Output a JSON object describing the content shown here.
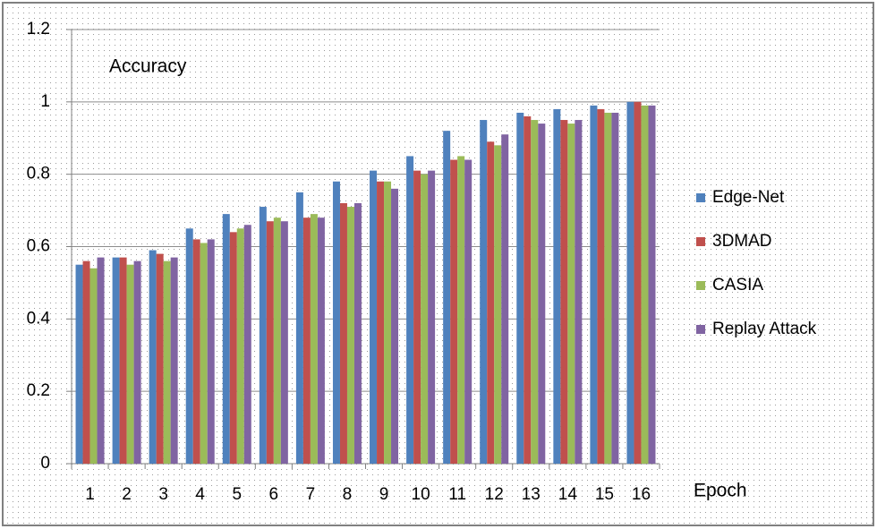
{
  "chart_data": {
    "type": "bar",
    "annotation": "Accuracy",
    "x_label": "Epoch",
    "categories": [
      "1",
      "2",
      "3",
      "4",
      "5",
      "6",
      "7",
      "8",
      "9",
      "10",
      "11",
      "12",
      "13",
      "14",
      "15",
      "16"
    ],
    "series": [
      {
        "name": "Edge-Net",
        "color": "#4f81bd",
        "values": [
          0.55,
          0.57,
          0.59,
          0.65,
          0.69,
          0.71,
          0.75,
          0.78,
          0.81,
          0.85,
          0.92,
          0.95,
          0.97,
          0.98,
          0.99,
          1.0
        ]
      },
      {
        "name": "3DMAD",
        "color": "#c0504d",
        "values": [
          0.56,
          0.57,
          0.58,
          0.62,
          0.64,
          0.67,
          0.68,
          0.72,
          0.78,
          0.81,
          0.84,
          0.89,
          0.96,
          0.95,
          0.98,
          1.0
        ]
      },
      {
        "name": "CASIA",
        "color": "#9bbb59",
        "values": [
          0.54,
          0.55,
          0.56,
          0.61,
          0.65,
          0.68,
          0.69,
          0.71,
          0.78,
          0.8,
          0.85,
          0.88,
          0.95,
          0.94,
          0.97,
          0.99
        ]
      },
      {
        "name": "Replay Attack",
        "color": "#8064a2",
        "values": [
          0.57,
          0.56,
          0.57,
          0.62,
          0.66,
          0.67,
          0.68,
          0.72,
          0.76,
          0.81,
          0.84,
          0.91,
          0.94,
          0.95,
          0.97,
          0.99
        ]
      }
    ],
    "ylim": [
      0,
      1.2
    ],
    "yticks": [
      0,
      0.2,
      0.4,
      0.6,
      0.8,
      1,
      1.2
    ],
    "grid": true,
    "legend": "right"
  }
}
